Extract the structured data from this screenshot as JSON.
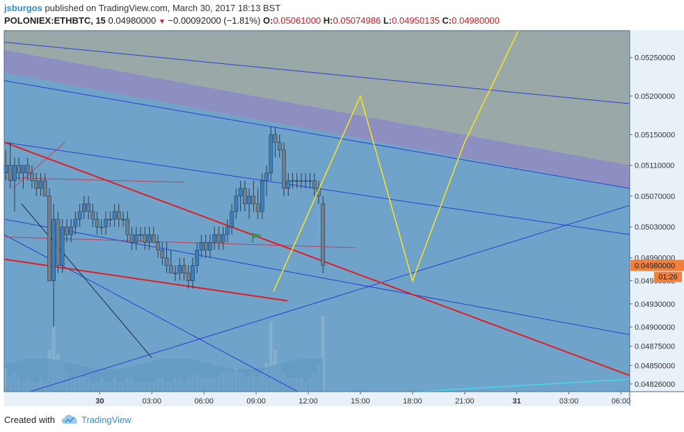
{
  "header": {
    "author": "jsburgos",
    "published_text": "published on TradingView.com, March 30, 2017 18:13 BST",
    "symbol": "POLONIEX:ETHBTC, 15",
    "last": "0.04980000",
    "change": "−0.00092000 (−1.81%)",
    "open_label": "O:",
    "open": "0.05061000",
    "high_label": "H:",
    "high": "0.05074986",
    "low_label": "L:",
    "low": "0.04950135",
    "close_label": "C:",
    "close": "0.04980000"
  },
  "footer": {
    "created_with": "Created with",
    "brand": "TradingView",
    "logo_icon": "tradingview-cloud-icon"
  },
  "price_tag": {
    "value": "0.04980000",
    "countdown": "01:26",
    "color": "#f0803c"
  },
  "chart_data": {
    "type": "candlestick",
    "interval": "15",
    "ylim": [
      0.04816,
      0.05285
    ],
    "x_range_hours": [
      -5.5,
      30.5
    ],
    "x_unit": "hours since 30 Mar 2017 00:00",
    "y_ticks": [
      {
        "value": 0.0525,
        "label": "0.05250000"
      },
      {
        "value": 0.052,
        "label": "0.05200000"
      },
      {
        "value": 0.0515,
        "label": "0.05150000"
      },
      {
        "value": 0.0511,
        "label": "0.05110000"
      },
      {
        "value": 0.0507,
        "label": "0.05070000"
      },
      {
        "value": 0.0503,
        "label": "0.05030000"
      },
      {
        "value": 0.0499,
        "label": "0.04990000"
      },
      {
        "value": 0.0496,
        "label": "0.04960000"
      },
      {
        "value": 0.0493,
        "label": "0.04930000"
      },
      {
        "value": 0.049,
        "label": "0.04900000"
      },
      {
        "value": 0.04875,
        "label": "0.04875000"
      },
      {
        "value": 0.0485,
        "label": "0.04850000"
      },
      {
        "value": 0.04826,
        "label": "0.04826000"
      }
    ],
    "x_ticks": [
      {
        "h": 0,
        "label": "30",
        "bold": true
      },
      {
        "h": 3,
        "label": "03:00"
      },
      {
        "h": 6,
        "label": "06:00"
      },
      {
        "h": 9,
        "label": "09:00"
      },
      {
        "h": 12,
        "label": "12:00"
      },
      {
        "h": 15,
        "label": "15:00"
      },
      {
        "h": 18,
        "label": "18:00"
      },
      {
        "h": 21,
        "label": "21:00"
      },
      {
        "h": 24,
        "label": "31",
        "bold": true
      },
      {
        "h": 27,
        "label": "03:00"
      },
      {
        "h": 30,
        "label": "06:00"
      }
    ],
    "ohlc": [
      [
        0.051,
        0.0513,
        0.0509,
        0.0511
      ],
      [
        0.0511,
        0.0514,
        0.0508,
        0.0509
      ],
      [
        0.0509,
        0.0512,
        0.0505,
        0.0511
      ],
      [
        0.0511,
        0.0512,
        0.0509,
        0.051
      ],
      [
        0.051,
        0.0511,
        0.0508,
        0.0511
      ],
      [
        0.0511,
        0.0512,
        0.0509,
        0.051
      ],
      [
        0.051,
        0.0511,
        0.0508,
        0.0509
      ],
      [
        0.0509,
        0.051,
        0.0507,
        0.0508
      ],
      [
        0.0508,
        0.051,
        0.0507,
        0.0509
      ],
      [
        0.0509,
        0.051,
        0.0507,
        0.0507
      ],
      [
        0.0507,
        0.0508,
        0.0496,
        0.0496
      ],
      [
        0.0496,
        0.0506,
        0.049,
        0.0504
      ],
      [
        0.0504,
        0.0505,
        0.0497,
        0.0498
      ],
      [
        0.0498,
        0.0504,
        0.0497,
        0.0503
      ],
      [
        0.0503,
        0.0504,
        0.0501,
        0.0502
      ],
      [
        0.0502,
        0.0504,
        0.0501,
        0.0503
      ],
      [
        0.0503,
        0.0505,
        0.0502,
        0.0504
      ],
      [
        0.0504,
        0.0506,
        0.0503,
        0.0505
      ],
      [
        0.0505,
        0.0507,
        0.0504,
        0.0506
      ],
      [
        0.0506,
        0.0507,
        0.0504,
        0.0505
      ],
      [
        0.0505,
        0.0506,
        0.0503,
        0.0504
      ],
      [
        0.0504,
        0.0505,
        0.0502,
        0.0503
      ],
      [
        0.0503,
        0.0504,
        0.0502,
        0.0503
      ],
      [
        0.0503,
        0.0505,
        0.0502,
        0.0504
      ],
      [
        0.0504,
        0.0505,
        0.0503,
        0.0504
      ],
      [
        0.0504,
        0.0506,
        0.0503,
        0.0505
      ],
      [
        0.0505,
        0.0506,
        0.0503,
        0.0504
      ],
      [
        0.0504,
        0.0505,
        0.0503,
        0.0504
      ],
      [
        0.0504,
        0.0505,
        0.0501,
        0.0502
      ],
      [
        0.0502,
        0.0503,
        0.05,
        0.0501
      ],
      [
        0.0501,
        0.0503,
        0.05,
        0.0502
      ],
      [
        0.0502,
        0.0503,
        0.0501,
        0.0502
      ],
      [
        0.0502,
        0.0503,
        0.05,
        0.0501
      ],
      [
        0.0501,
        0.0503,
        0.05,
        0.0502
      ],
      [
        0.0502,
        0.0503,
        0.0501,
        0.0501
      ],
      [
        0.0501,
        0.0502,
        0.0499,
        0.05
      ],
      [
        0.05,
        0.0501,
        0.0498,
        0.0499
      ],
      [
        0.0499,
        0.0501,
        0.0497,
        0.0498
      ],
      [
        0.0498,
        0.05,
        0.0497,
        0.0497
      ],
      [
        0.0497,
        0.0498,
        0.0496,
        0.0497
      ],
      [
        0.0497,
        0.0499,
        0.0496,
        0.0498
      ],
      [
        0.0498,
        0.0499,
        0.0496,
        0.0497
      ],
      [
        0.0497,
        0.0498,
        0.0495,
        0.0496
      ],
      [
        0.0496,
        0.0499,
        0.0495,
        0.0498
      ],
      [
        0.0498,
        0.0501,
        0.0497,
        0.05
      ],
      [
        0.05,
        0.0502,
        0.0499,
        0.0501
      ],
      [
        0.0501,
        0.0502,
        0.0499,
        0.05
      ],
      [
        0.05,
        0.0502,
        0.0499,
        0.0501
      ],
      [
        0.0501,
        0.0503,
        0.05,
        0.0502
      ],
      [
        0.0502,
        0.0503,
        0.05,
        0.0501
      ],
      [
        0.0501,
        0.0503,
        0.05,
        0.0502
      ],
      [
        0.0502,
        0.0504,
        0.0501,
        0.0503
      ],
      [
        0.0503,
        0.0506,
        0.0502,
        0.0505
      ],
      [
        0.0505,
        0.0508,
        0.0504,
        0.0507
      ],
      [
        0.0507,
        0.0509,
        0.0505,
        0.0508
      ],
      [
        0.0508,
        0.0509,
        0.0505,
        0.0506
      ],
      [
        0.0506,
        0.0508,
        0.0504,
        0.0507
      ],
      [
        0.0507,
        0.0509,
        0.0505,
        0.0506
      ],
      [
        0.0506,
        0.0508,
        0.0504,
        0.0505
      ],
      [
        0.0505,
        0.051,
        0.0504,
        0.0509
      ],
      [
        0.0509,
        0.0511,
        0.0507,
        0.051
      ],
      [
        0.051,
        0.0516,
        0.0509,
        0.0515
      ],
      [
        0.0515,
        0.0516,
        0.0512,
        0.0514
      ],
      [
        0.0514,
        0.0515,
        0.0512,
        0.0513
      ],
      [
        0.0513,
        0.0514,
        0.0507,
        0.0508
      ],
      [
        0.0508,
        0.051,
        0.0507,
        0.0509
      ],
      [
        0.0509,
        0.051,
        0.0508,
        0.0509
      ],
      [
        0.0509,
        0.051,
        0.0508,
        0.0509
      ],
      [
        0.0509,
        0.051,
        0.0508,
        0.0509
      ],
      [
        0.0509,
        0.051,
        0.0508,
        0.0509
      ],
      [
        0.0509,
        0.051,
        0.0508,
        0.0509
      ],
      [
        0.0509,
        0.051,
        0.0507,
        0.0508
      ],
      [
        0.0508,
        0.0509,
        0.0506,
        0.0507
      ],
      [
        0.0506,
        0.0507,
        0.0497,
        0.0498
      ]
    ],
    "volume": [
      0.5,
      0.3,
      0.4,
      0.3,
      0.2,
      0.3,
      0.2,
      0.2,
      0.3,
      0.2,
      0.9,
      1.4,
      0.8,
      0.6,
      0.4,
      0.3,
      0.3,
      0.4,
      0.3,
      0.3,
      0.2,
      0.2,
      0.3,
      0.2,
      0.2,
      0.3,
      0.2,
      0.2,
      0.3,
      0.3,
      0.2,
      0.2,
      0.2,
      0.2,
      0.2,
      0.3,
      0.3,
      0.2,
      0.2,
      0.3,
      0.3,
      0.2,
      0.3,
      0.4,
      0.4,
      0.3,
      0.3,
      0.3,
      0.3,
      0.3,
      0.4,
      0.4,
      0.4,
      0.5,
      0.4,
      0.3,
      0.3,
      0.4,
      0.3,
      0.4,
      0.6,
      1.5,
      0.9,
      0.6,
      0.4,
      0.3,
      0.3,
      0.3,
      0.3,
      0.2,
      0.3,
      0.4,
      0.6,
      1.6
    ],
    "drawings": {
      "red_lines": [
        {
          "p1": [
            -5.5,
            0.0514
          ],
          "p2": [
            30.5,
            0.04837
          ]
        },
        {
          "p1": [
            -5.5,
            0.04988
          ],
          "p2": [
            10.8,
            0.04934
          ]
        }
      ],
      "thin_red_lines": [
        {
          "p1": [
            -5.5,
            0.05094
          ],
          "p2": [
            4.9,
            0.05088
          ]
        },
        {
          "p1": [
            -5.5,
            0.05017
          ],
          "p2": [
            14.7,
            0.05003
          ]
        }
      ],
      "blue_lines": [
        {
          "p1": [
            -5.5,
            0.0527
          ],
          "p2": [
            30.5,
            0.0519
          ]
        },
        {
          "p1": [
            -5.5,
            0.0522
          ],
          "p2": [
            30.5,
            0.0508
          ]
        },
        {
          "p1": [
            -5.5,
            0.0514
          ],
          "p2": [
            30.5,
            0.0502
          ]
        },
        {
          "p1": [
            -5.5,
            0.0504
          ],
          "p2": [
            30.5,
            0.0489
          ]
        },
        {
          "p1": [
            -5.5,
            0.0502
          ],
          "p2": [
            11.4,
            0.04816
          ]
        },
        {
          "p1": [
            -4.0,
            0.04816
          ],
          "p2": [
            30.5,
            0.05058
          ]
        }
      ],
      "cyan_line": {
        "p1": [
          18.2,
          0.04816
        ],
        "p2": [
          30.5,
          0.04832
        ]
      },
      "channel_band": {
        "top": [
          [
            -5.5,
            0.0523
          ],
          [
            30.5,
            0.0508
          ]
        ],
        "bottom_value": 0.04816
      },
      "gray_top": {
        "top_value": 0.05285,
        "bottom": [
          [
            -5.5,
            0.0526
          ],
          [
            30.5,
            0.0511
          ]
        ]
      },
      "yellow_path": [
        [
          10.0,
          0.04946
        ],
        [
          15.0,
          0.052
        ],
        [
          18.0,
          0.0496
        ],
        [
          21.0,
          0.0514
        ],
        [
          24.2,
          0.0529
        ]
      ],
      "flag_icon": {
        "h": 8.8,
        "price": 0.05022,
        "color": "#3f8f5a"
      },
      "dark_diagonal": {
        "p1": [
          -4.5,
          0.0506
        ],
        "p2": [
          3.0,
          0.0486
        ]
      },
      "small_red_diagonal": {
        "p1": [
          -5.0,
          0.0508
        ],
        "p2": [
          -2.0,
          0.0514
        ]
      }
    }
  }
}
